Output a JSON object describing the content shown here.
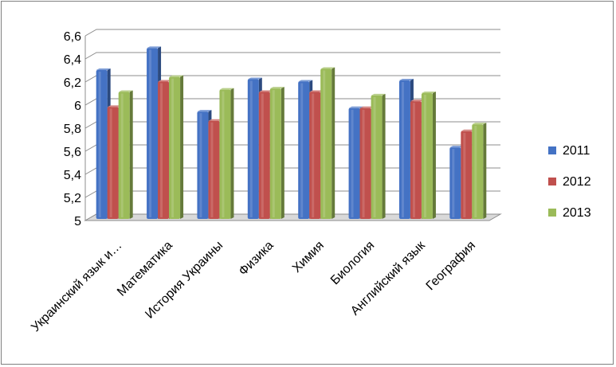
{
  "chart_data": {
    "type": "bar",
    "title": "",
    "xlabel": "",
    "ylabel": "",
    "ylim": [
      5,
      6.6
    ],
    "yticks": [
      "5",
      "5,2",
      "5,4",
      "5,6",
      "5,8",
      "6",
      "6,2",
      "6,4",
      "6,6"
    ],
    "grid": true,
    "legend_position": "right",
    "categories": [
      "Украинский язык и…",
      "Математика",
      "История Украины",
      "Физика",
      "Химия",
      "Биология",
      "Английский язык",
      "География"
    ],
    "series": [
      {
        "name": "2011",
        "color": "#4472c4",
        "values": [
          6.29,
          6.48,
          5.93,
          6.21,
          6.19,
          5.96,
          6.2,
          5.62
        ]
      },
      {
        "name": "2012",
        "color": "#c0504d",
        "values": [
          5.97,
          6.19,
          5.85,
          6.1,
          6.1,
          5.96,
          6.02,
          5.76
        ]
      },
      {
        "name": "2013",
        "color": "#9bbb59",
        "values": [
          6.1,
          6.23,
          6.12,
          6.13,
          6.3,
          6.07,
          6.09,
          5.82
        ]
      }
    ]
  }
}
